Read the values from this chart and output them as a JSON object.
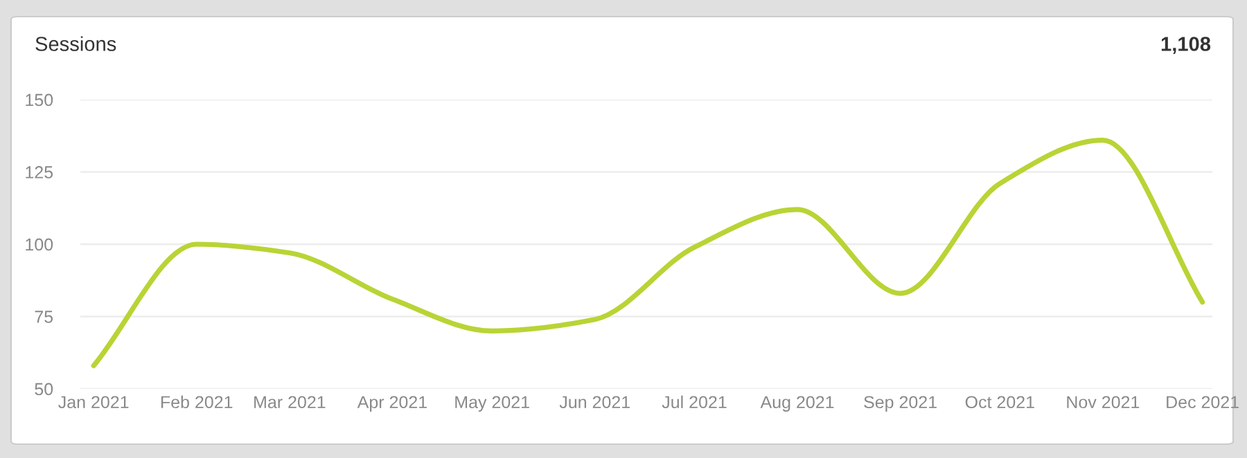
{
  "chart_data": {
    "type": "line",
    "title": "Sessions",
    "annotations": [
      "1,108"
    ],
    "x": [
      "2021-01-01",
      "2021-02-01",
      "2021-03-01",
      "2021-04-01",
      "2021-05-01",
      "2021-06-01",
      "2021-07-01",
      "2021-08-01",
      "2021-09-01",
      "2021-10-01",
      "2021-11-01",
      "2021-12-01"
    ],
    "series": [
      {
        "color": "#b8d435",
        "values": [
          58,
          100,
          97,
          81,
          70,
          74,
          99,
          112,
          83,
          121,
          136,
          80
        ]
      }
    ],
    "xlim": [
      "2020-12-28",
      "2021-12-04"
    ],
    "xticks": [
      {
        "value": "2021-01-01",
        "label": "Jan 2021"
      },
      {
        "value": "2021-02-01",
        "label": "Feb 2021"
      },
      {
        "value": "2021-03-01",
        "label": "Mar 2021"
      },
      {
        "value": "2021-04-01",
        "label": "Apr 2021"
      },
      {
        "value": "2021-05-01",
        "label": "May 2021"
      },
      {
        "value": "2021-06-01",
        "label": "Jun 2021"
      },
      {
        "value": "2021-07-01",
        "label": "Jul 2021"
      },
      {
        "value": "2021-08-01",
        "label": "Aug 2021"
      },
      {
        "value": "2021-09-01",
        "label": "Sep 2021"
      },
      {
        "value": "2021-10-01",
        "label": "Oct 2021"
      },
      {
        "value": "2021-11-01",
        "label": "Nov 2021"
      },
      {
        "value": "2021-12-01",
        "label": "Dec 2021"
      }
    ],
    "ylim": [
      50,
      150
    ],
    "yticks": [
      50,
      75,
      100,
      125,
      150
    ],
    "grid": "y",
    "legend": false
  }
}
